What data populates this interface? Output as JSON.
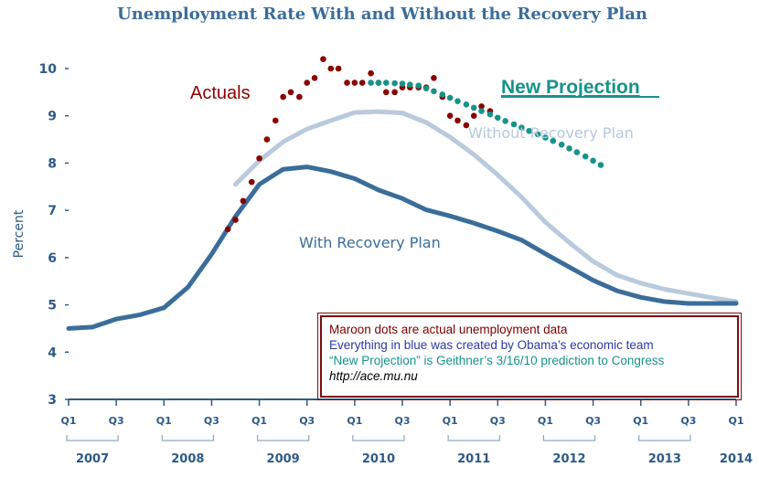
{
  "chart_data": {
    "type": "line",
    "title": "Unemployment Rate With and Without the Recovery Plan",
    "ylabel": "Percent",
    "ylim": [
      3,
      10
    ],
    "yticks": [
      3,
      4,
      5,
      6,
      7,
      8,
      9,
      10
    ],
    "x_domain": [
      2007.0,
      2014.0
    ],
    "quarter_ticks": [
      {
        "label": "Q1",
        "t": 2007.0
      },
      {
        "label": "Q3",
        "t": 2007.5
      },
      {
        "label": "Q1",
        "t": 2008.0
      },
      {
        "label": "Q3",
        "t": 2008.5
      },
      {
        "label": "Q1",
        "t": 2009.0
      },
      {
        "label": "Q3",
        "t": 2009.5
      },
      {
        "label": "Q1",
        "t": 2010.0
      },
      {
        "label": "Q3",
        "t": 2010.5
      },
      {
        "label": "Q1",
        "t": 2011.0
      },
      {
        "label": "Q3",
        "t": 2011.5
      },
      {
        "label": "Q1",
        "t": 2012.0
      },
      {
        "label": "Q3",
        "t": 2012.5
      },
      {
        "label": "Q1",
        "t": 2013.0
      },
      {
        "label": "Q3",
        "t": 2013.5
      },
      {
        "label": "Q1",
        "t": 2014.0
      }
    ],
    "year_labels": [
      {
        "label": "2007",
        "t": 2007.25
      },
      {
        "label": "2008",
        "t": 2008.25
      },
      {
        "label": "2009",
        "t": 2009.25
      },
      {
        "label": "2010",
        "t": 2010.25
      },
      {
        "label": "2011",
        "t": 2011.25
      },
      {
        "label": "2012",
        "t": 2012.25
      },
      {
        "label": "2013",
        "t": 2013.25
      },
      {
        "label": "2014",
        "t": 2014.0
      }
    ],
    "series": [
      {
        "name": "Without Recovery Plan",
        "style": "line",
        "color": "#b9cadd",
        "points": [
          [
            2008.75,
            7.55
          ],
          [
            2009.0,
            8.05
          ],
          [
            2009.25,
            8.45
          ],
          [
            2009.5,
            8.72
          ],
          [
            2009.75,
            8.9
          ],
          [
            2010.0,
            9.07
          ],
          [
            2010.25,
            9.09
          ],
          [
            2010.5,
            9.06
          ],
          [
            2010.75,
            8.86
          ],
          [
            2011.0,
            8.55
          ],
          [
            2011.25,
            8.18
          ],
          [
            2011.5,
            7.75
          ],
          [
            2011.75,
            7.28
          ],
          [
            2012.0,
            6.75
          ],
          [
            2012.25,
            6.32
          ],
          [
            2012.5,
            5.92
          ],
          [
            2012.75,
            5.63
          ],
          [
            2013.0,
            5.46
          ],
          [
            2013.25,
            5.33
          ],
          [
            2013.5,
            5.24
          ],
          [
            2013.75,
            5.15
          ],
          [
            2014.0,
            5.07
          ]
        ]
      },
      {
        "name": "With Recovery Plan",
        "style": "line",
        "color": "#3a6d9a",
        "points": [
          [
            2007.0,
            4.5
          ],
          [
            2007.25,
            4.53
          ],
          [
            2007.5,
            4.7
          ],
          [
            2007.75,
            4.79
          ],
          [
            2008.0,
            4.94
          ],
          [
            2008.25,
            5.37
          ],
          [
            2008.5,
            6.07
          ],
          [
            2008.75,
            6.87
          ],
          [
            2009.0,
            7.55
          ],
          [
            2009.25,
            7.87
          ],
          [
            2009.5,
            7.92
          ],
          [
            2009.75,
            7.82
          ],
          [
            2010.0,
            7.67
          ],
          [
            2010.25,
            7.43
          ],
          [
            2010.5,
            7.25
          ],
          [
            2010.75,
            7.01
          ],
          [
            2011.0,
            6.88
          ],
          [
            2011.25,
            6.73
          ],
          [
            2011.5,
            6.56
          ],
          [
            2011.75,
            6.37
          ],
          [
            2012.0,
            6.08
          ],
          [
            2012.25,
            5.8
          ],
          [
            2012.5,
            5.52
          ],
          [
            2012.75,
            5.3
          ],
          [
            2013.0,
            5.16
          ],
          [
            2013.25,
            5.07
          ],
          [
            2013.5,
            5.03
          ],
          [
            2013.75,
            5.03
          ],
          [
            2014.0,
            5.03
          ]
        ]
      },
      {
        "name": "Actuals",
        "style": "dots",
        "color": "#8b0000",
        "points": [
          [
            2008.67,
            6.6
          ],
          [
            2008.75,
            6.8
          ],
          [
            2008.83,
            7.2
          ],
          [
            2008.92,
            7.6
          ],
          [
            2009.0,
            8.1
          ],
          [
            2009.08,
            8.5
          ],
          [
            2009.17,
            8.9
          ],
          [
            2009.25,
            9.4
          ],
          [
            2009.33,
            9.5
          ],
          [
            2009.42,
            9.4
          ],
          [
            2009.5,
            9.7
          ],
          [
            2009.58,
            9.8
          ],
          [
            2009.67,
            10.2
          ],
          [
            2009.75,
            10.0
          ],
          [
            2009.83,
            10.0
          ],
          [
            2009.92,
            9.7
          ],
          [
            2010.0,
            9.7
          ],
          [
            2010.08,
            9.7
          ],
          [
            2010.17,
            9.9
          ],
          [
            2010.25,
            9.7
          ],
          [
            2010.33,
            9.5
          ],
          [
            2010.42,
            9.5
          ],
          [
            2010.5,
            9.6
          ],
          [
            2010.58,
            9.6
          ],
          [
            2010.67,
            9.6
          ],
          [
            2010.75,
            9.6
          ],
          [
            2010.83,
            9.8
          ],
          [
            2010.92,
            9.4
          ],
          [
            2011.0,
            9.0
          ],
          [
            2011.08,
            8.9
          ],
          [
            2011.17,
            8.8
          ],
          [
            2011.25,
            9.0
          ],
          [
            2011.33,
            9.2
          ],
          [
            2011.42,
            9.1
          ]
        ]
      },
      {
        "name": "New Projection",
        "style": "dots",
        "color": "#16938a",
        "points": [
          [
            2010.17,
            9.7
          ],
          [
            2010.25,
            9.7
          ],
          [
            2010.33,
            9.7
          ],
          [
            2010.42,
            9.69
          ],
          [
            2010.5,
            9.68
          ],
          [
            2010.58,
            9.66
          ],
          [
            2010.67,
            9.64
          ],
          [
            2010.75,
            9.58
          ],
          [
            2010.83,
            9.52
          ],
          [
            2010.92,
            9.45
          ],
          [
            2011.0,
            9.38
          ],
          [
            2011.08,
            9.31
          ],
          [
            2011.17,
            9.24
          ],
          [
            2011.25,
            9.17
          ],
          [
            2011.33,
            9.1
          ],
          [
            2011.42,
            9.03
          ],
          [
            2011.5,
            8.96
          ],
          [
            2011.58,
            8.89
          ],
          [
            2011.67,
            8.82
          ],
          [
            2011.75,
            8.75
          ],
          [
            2011.83,
            8.68
          ],
          [
            2011.92,
            8.61
          ],
          [
            2012.0,
            8.54
          ],
          [
            2012.08,
            8.47
          ],
          [
            2012.17,
            8.39
          ],
          [
            2012.25,
            8.31
          ],
          [
            2012.33,
            8.23
          ],
          [
            2012.42,
            8.14
          ],
          [
            2012.5,
            8.05
          ],
          [
            2012.58,
            7.96
          ]
        ]
      }
    ],
    "annotations": {
      "actuals_label": "Actuals",
      "new_projection_label": "New Projection",
      "without_label": "Without Recovery Plan",
      "with_label": "With Recovery Plan"
    }
  },
  "note": {
    "line1": "Maroon dots are actual unemployment  data",
    "line2": "Everything  in blue was created by Obama’s economic team",
    "line3": "“New Projection” is Geithner’s 3/16/10 prediction to Congress",
    "line4": "http://ace.mu.nu"
  }
}
